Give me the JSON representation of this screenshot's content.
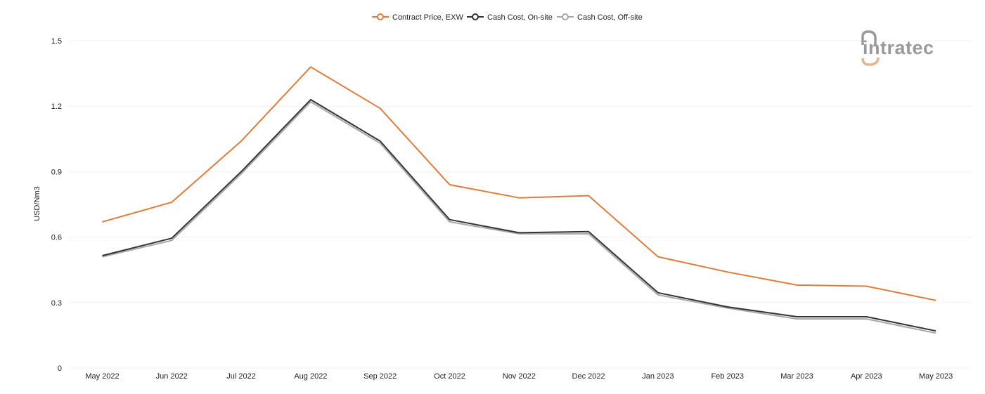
{
  "chart_data": {
    "type": "line",
    "title": "",
    "xlabel": "",
    "ylabel": "USD/Nm3",
    "ylim": [
      0,
      1.5
    ],
    "yticks": [
      "0",
      "0.3",
      "0.6",
      "0.9",
      "1.2",
      "1.5"
    ],
    "grid": true,
    "legend_position": "top-center",
    "categories": [
      "May 2022",
      "Jun 2022",
      "Jul 2022",
      "Aug 2022",
      "Sep 2022",
      "Oct 2022",
      "Nov 2022",
      "Dec 2022",
      "Jan 2023",
      "Feb 2023",
      "Mar 2023",
      "Apr 2023",
      "May 2023"
    ],
    "series": [
      {
        "name": "Contract Price, EXW",
        "color": "#E07B39",
        "marker": "hollow",
        "values": [
          0.67,
          0.76,
          1.04,
          1.38,
          1.19,
          0.84,
          0.78,
          0.79,
          0.51,
          0.44,
          0.38,
          0.375,
          0.31
        ]
      },
      {
        "name": "Cash Cost, On-site",
        "color": "#333333",
        "marker": "hollow",
        "values": [
          0.515,
          0.595,
          0.9,
          1.23,
          1.04,
          0.68,
          0.62,
          0.625,
          0.345,
          0.28,
          0.235,
          0.235,
          0.17
        ]
      },
      {
        "name": "Cash Cost, Off-site",
        "color": "#A8A8A8",
        "marker": "hollow",
        "values": [
          0.51,
          0.585,
          0.89,
          1.22,
          1.03,
          0.67,
          0.615,
          0.615,
          0.335,
          0.275,
          0.225,
          0.225,
          0.16
        ]
      }
    ]
  },
  "logo": {
    "text": "intratec",
    "color": "#9a9a9a",
    "accent": "#E3B48F"
  }
}
